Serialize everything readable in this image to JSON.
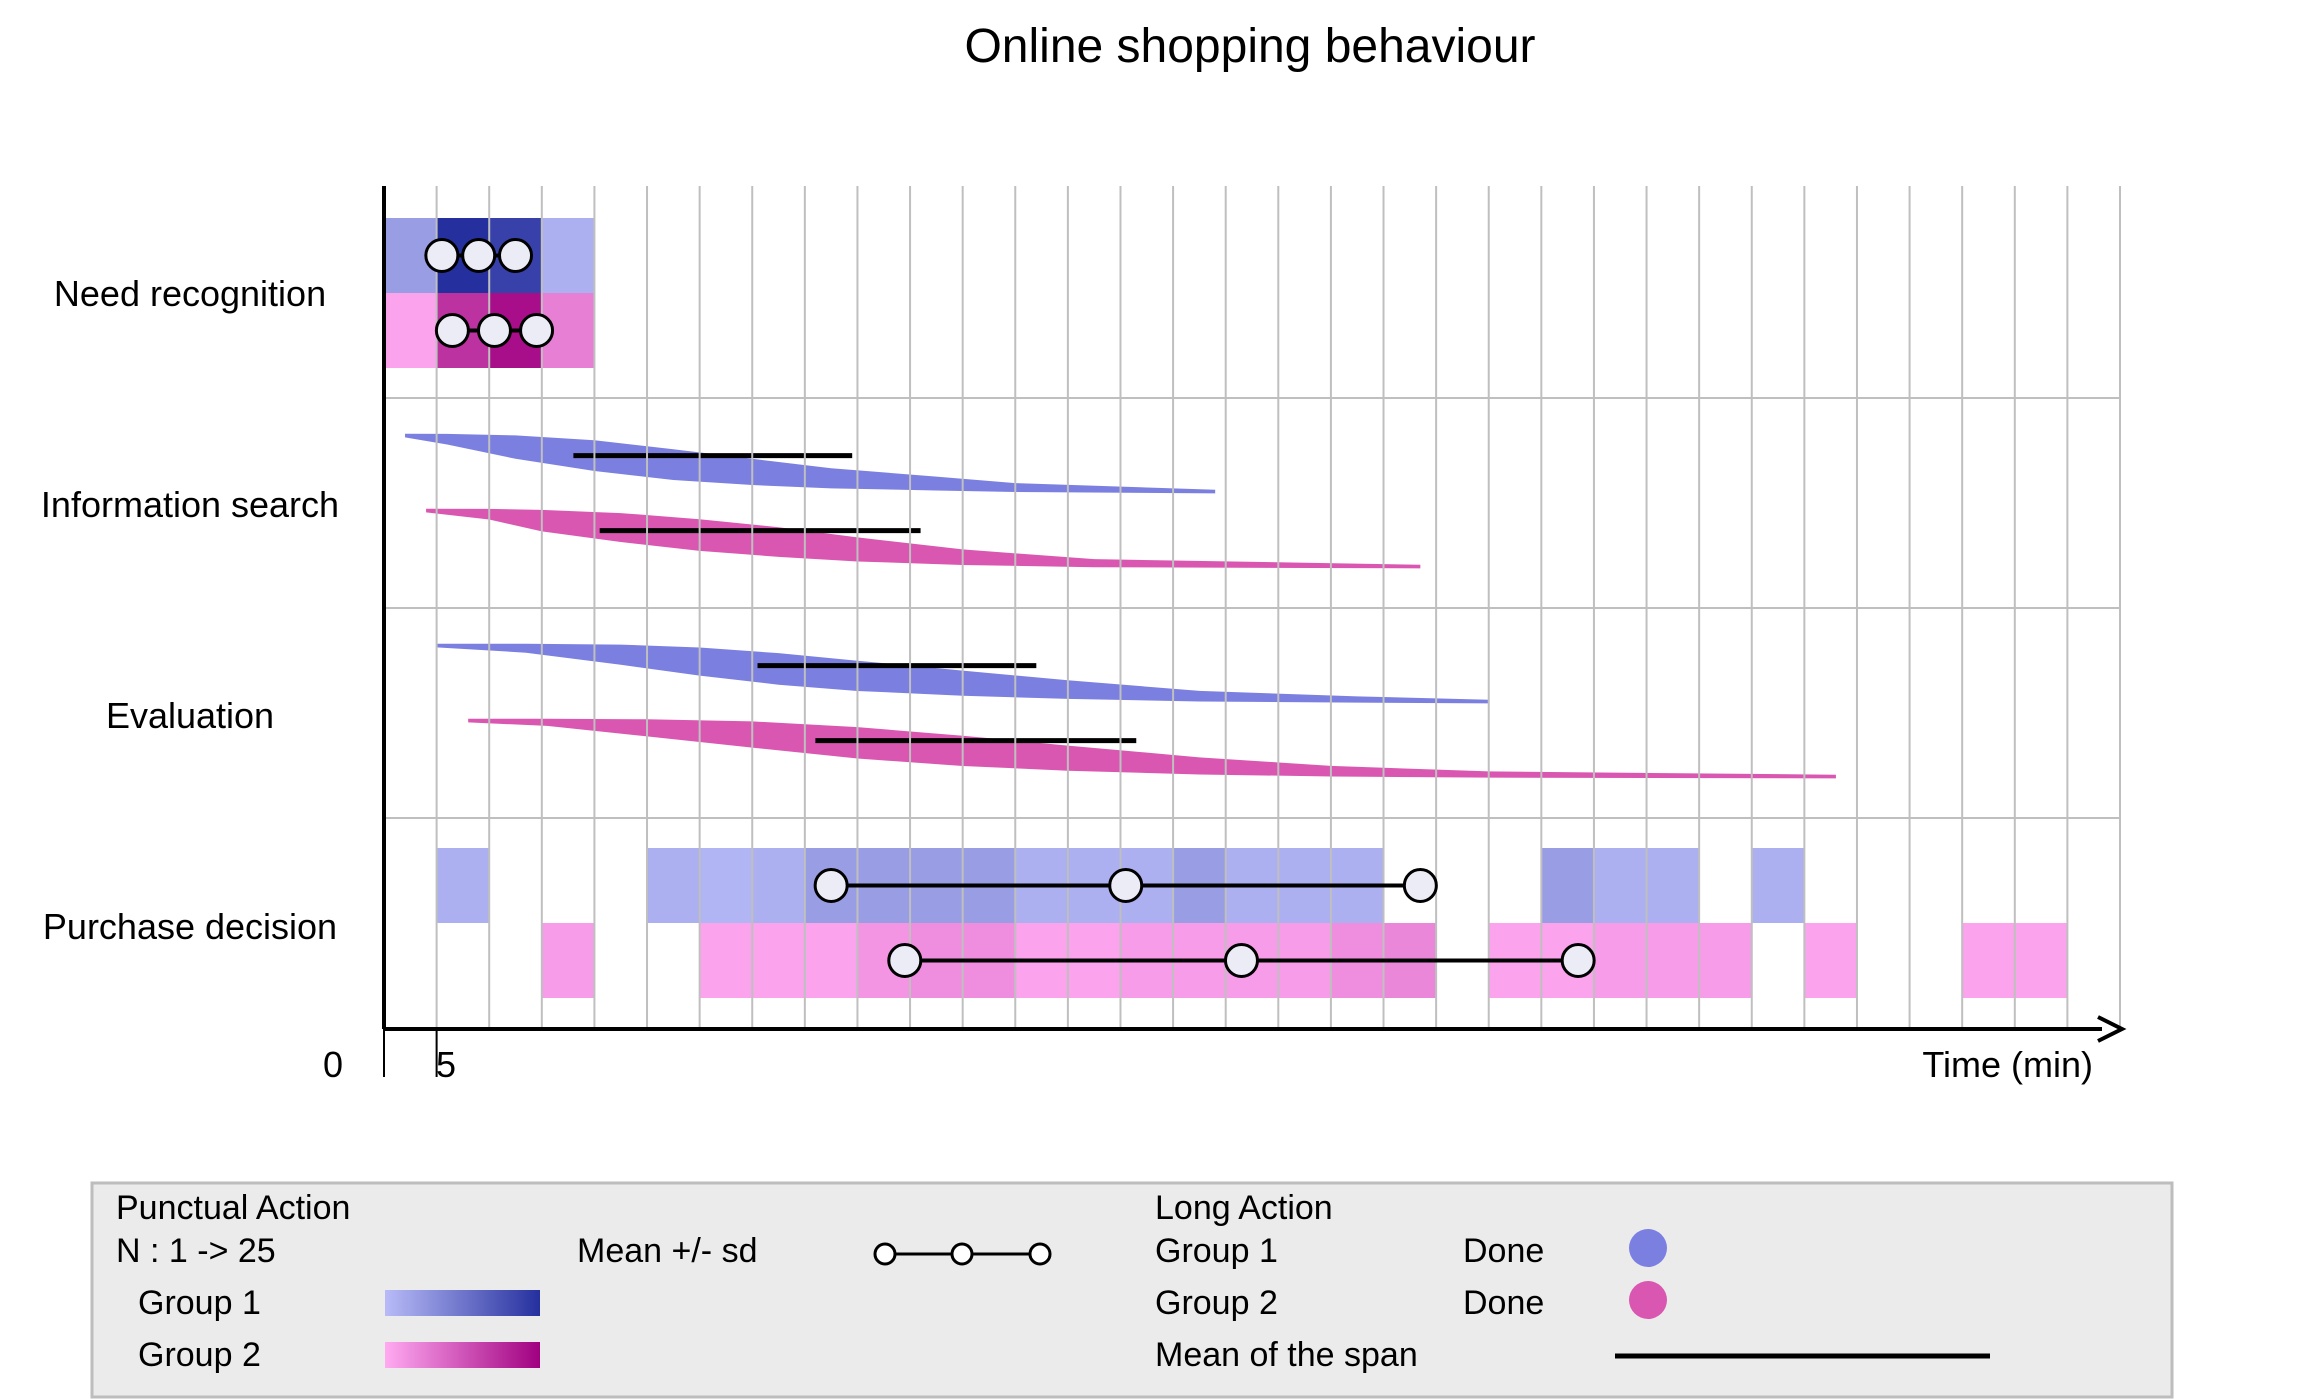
{
  "chart_data": {
    "type": "timeline",
    "title": "Online shopping behaviour",
    "xlabel": "Time (min)",
    "xlim": [
      0,
      33
    ],
    "x_ticks": [
      {
        "value": 0,
        "label": "0"
      },
      {
        "value": 1,
        "label": "5"
      }
    ],
    "rows": [
      "Need recognition",
      "Information search",
      "Evaluation",
      "Purchase decision"
    ],
    "groups": [
      {
        "name": "Group 1",
        "done_color": "#7b7fe0",
        "ramp": [
          "#b8bbf7",
          "#25309e"
        ]
      },
      {
        "name": "Group 2",
        "done_color": "#d957b0",
        "ramp": [
          "#ffaaf1",
          "#a00080"
        ]
      }
    ],
    "punctual": [
      {
        "row": "Need recognition",
        "group": "Group 1",
        "cells": [
          {
            "x": 0,
            "n": 6
          },
          {
            "x": 1,
            "n": 25
          },
          {
            "x": 2,
            "n": 22
          },
          {
            "x": 3,
            "n": 3
          }
        ],
        "mean_sd": [
          1.1,
          1.8,
          2.5
        ]
      },
      {
        "row": "Need recognition",
        "group": "Group 2",
        "cells": [
          {
            "x": 0,
            "n": 2
          },
          {
            "x": 1,
            "n": 18
          },
          {
            "x": 2,
            "n": 23
          },
          {
            "x": 3,
            "n": 7
          }
        ],
        "mean_sd": [
          1.3,
          2.1,
          2.9
        ]
      },
      {
        "row": "Purchase decision",
        "group": "Group 1",
        "cells": [
          {
            "x": 1,
            "n": 3
          },
          {
            "x": 5,
            "n": 3
          },
          {
            "x": 6,
            "n": 2
          },
          {
            "x": 7,
            "n": 3
          },
          {
            "x": 8,
            "n": 6
          },
          {
            "x": 9,
            "n": 6
          },
          {
            "x": 10,
            "n": 6
          },
          {
            "x": 11,
            "n": 6
          },
          {
            "x": 12,
            "n": 3
          },
          {
            "x": 13,
            "n": 3
          },
          {
            "x": 14,
            "n": 3
          },
          {
            "x": 15,
            "n": 6
          },
          {
            "x": 16,
            "n": 3
          },
          {
            "x": 17,
            "n": 3
          },
          {
            "x": 18,
            "n": 3
          },
          {
            "x": 22,
            "n": 6
          },
          {
            "x": 23,
            "n": 3
          },
          {
            "x": 24,
            "n": 3
          },
          {
            "x": 26,
            "n": 3
          }
        ],
        "mean_sd": [
          8.5,
          14.1,
          19.7
        ]
      },
      {
        "row": "Purchase decision",
        "group": "Group 2",
        "cells": [
          {
            "x": 3,
            "n": 3
          },
          {
            "x": 6,
            "n": 2
          },
          {
            "x": 7,
            "n": 2
          },
          {
            "x": 8,
            "n": 2
          },
          {
            "x": 9,
            "n": 4
          },
          {
            "x": 10,
            "n": 5
          },
          {
            "x": 11,
            "n": 5
          },
          {
            "x": 12,
            "n": 2
          },
          {
            "x": 13,
            "n": 2
          },
          {
            "x": 14,
            "n": 3
          },
          {
            "x": 15,
            "n": 3
          },
          {
            "x": 16,
            "n": 3
          },
          {
            "x": 17,
            "n": 3
          },
          {
            "x": 18,
            "n": 5
          },
          {
            "x": 19,
            "n": 6
          },
          {
            "x": 21,
            "n": 2
          },
          {
            "x": 22,
            "n": 2
          },
          {
            "x": 23,
            "n": 3
          },
          {
            "x": 24,
            "n": 3
          },
          {
            "x": 25,
            "n": 3
          },
          {
            "x": 27,
            "n": 2
          },
          {
            "x": 30,
            "n": 2
          },
          {
            "x": 31,
            "n": 2
          }
        ],
        "mean_sd": [
          9.9,
          16.3,
          22.7
        ]
      }
    ],
    "long": [
      {
        "row": "Information search",
        "group": "Group 1",
        "points": [
          [
            0.4,
            0.0
          ],
          [
            1.2,
            0.08
          ],
          [
            2.5,
            0.25
          ],
          [
            4,
            0.42
          ],
          [
            5.5,
            0.58
          ],
          [
            7,
            0.7
          ],
          [
            8.5,
            0.8
          ],
          [
            10.5,
            0.88
          ],
          [
            12,
            0.94
          ],
          [
            15.8,
            1.0
          ]
        ],
        "mean_span": [
          3.6,
          8.9
        ]
      },
      {
        "row": "Information search",
        "group": "Group 2",
        "points": [
          [
            0.8,
            0.0
          ],
          [
            2,
            0.08
          ],
          [
            3,
            0.22
          ],
          [
            4.5,
            0.36
          ],
          [
            6,
            0.5
          ],
          [
            7.5,
            0.62
          ],
          [
            9,
            0.74
          ],
          [
            11,
            0.86
          ],
          [
            13.5,
            0.95
          ],
          [
            19.7,
            1.0
          ]
        ],
        "mean_span": [
          4.1,
          10.2
        ]
      },
      {
        "row": "Evaluation",
        "group": "Group 1",
        "points": [
          [
            1,
            0.0
          ],
          [
            2.7,
            0.06
          ],
          [
            4.5,
            0.2
          ],
          [
            6,
            0.34
          ],
          [
            7.5,
            0.48
          ],
          [
            9,
            0.6
          ],
          [
            11,
            0.72
          ],
          [
            13,
            0.82
          ],
          [
            15.5,
            0.92
          ],
          [
            18.5,
            0.97
          ],
          [
            21,
            1.0
          ]
        ],
        "mean_span": [
          7.1,
          12.4
        ]
      },
      {
        "row": "Evaluation",
        "group": "Group 2",
        "points": [
          [
            1.6,
            0.0
          ],
          [
            3.1,
            0.04
          ],
          [
            5,
            0.16
          ],
          [
            7,
            0.3
          ],
          [
            9,
            0.46
          ],
          [
            11,
            0.6
          ],
          [
            13,
            0.72
          ],
          [
            15.5,
            0.84
          ],
          [
            18,
            0.92
          ],
          [
            21,
            0.97
          ],
          [
            27.6,
            1.0
          ]
        ],
        "mean_span": [
          8.2,
          14.3
        ]
      }
    ],
    "legend": {
      "punctual_title": "Punctual Action",
      "n_range": "N : 1 -> 25",
      "group1": "Group 1",
      "group2": "Group 2",
      "mean_sd": "Mean +/- sd",
      "long_title": "Long Action",
      "done1": "Done",
      "done2": "Done",
      "mean_span": "Mean of the span"
    }
  }
}
